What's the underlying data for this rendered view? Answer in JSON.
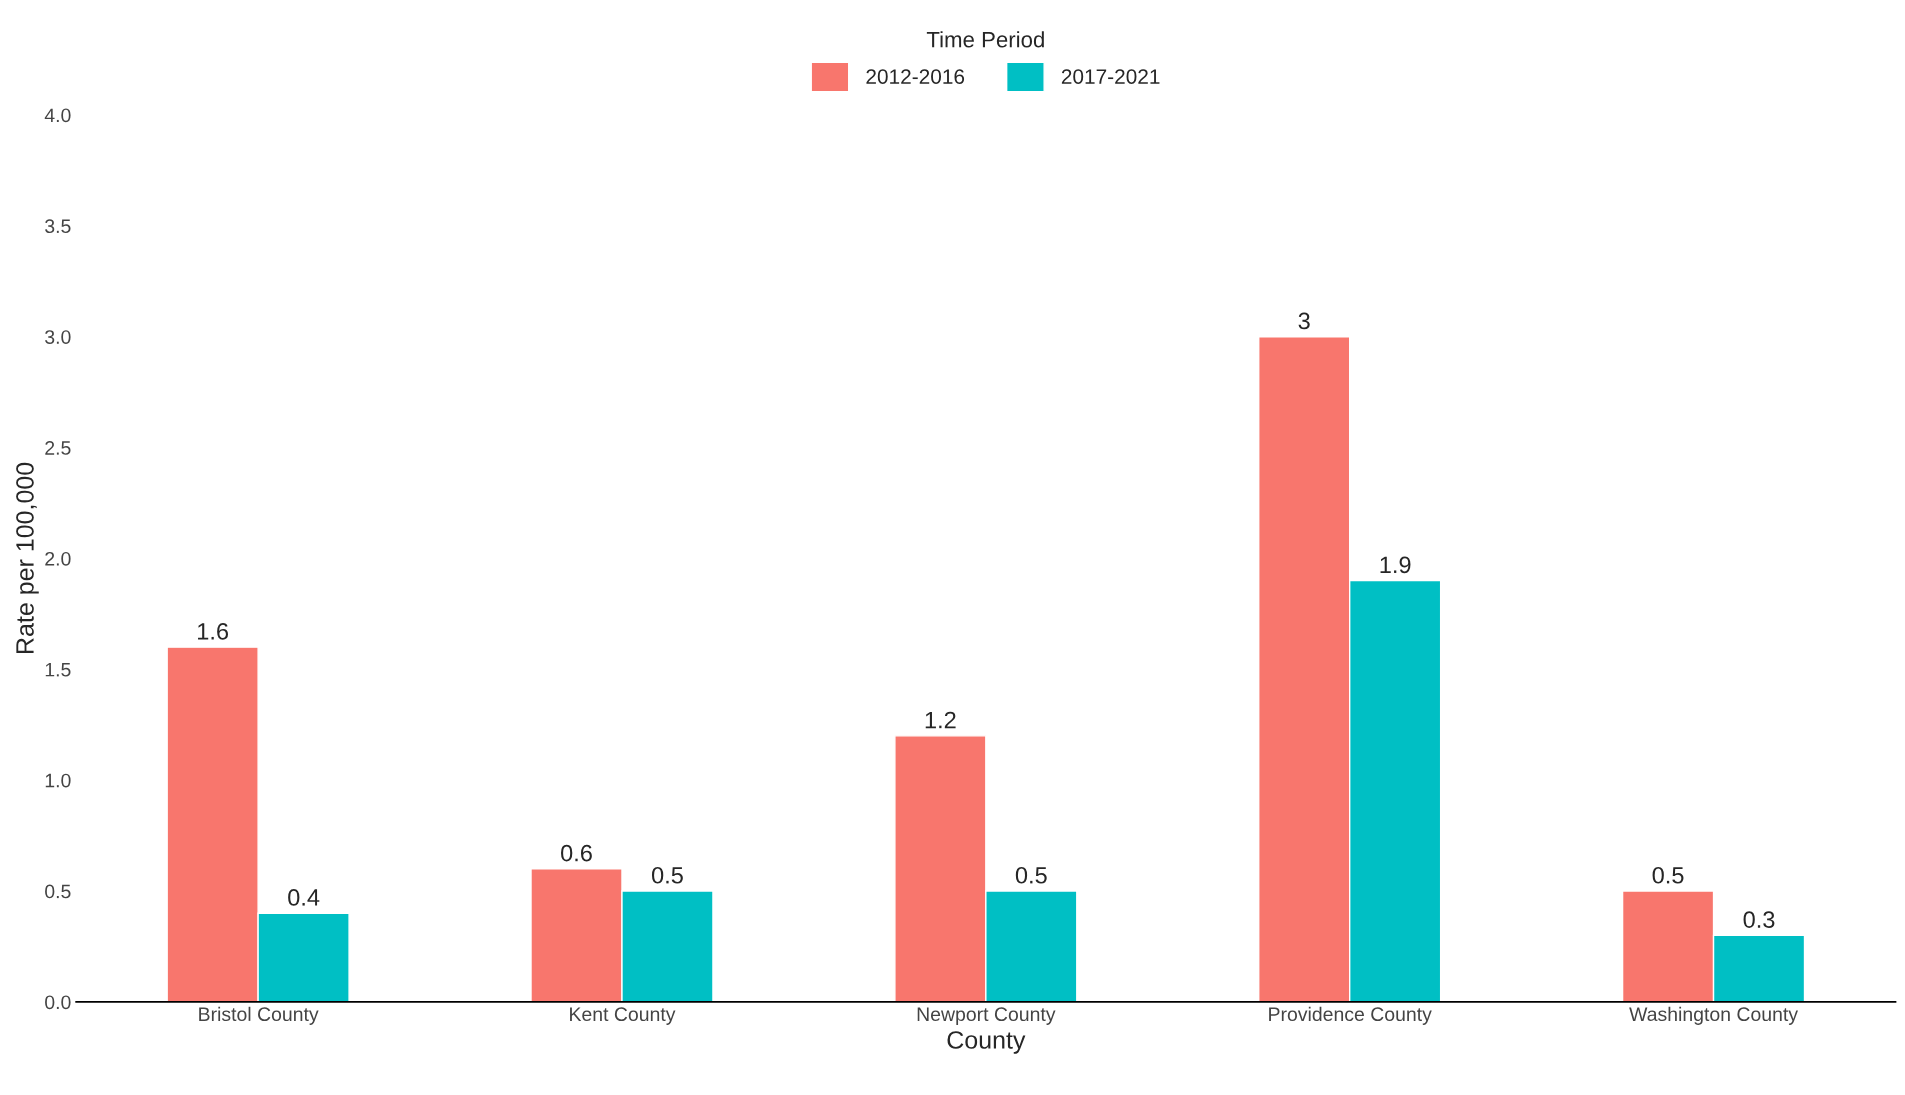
{
  "chart_data": {
    "type": "bar",
    "xlabel": "County",
    "ylabel": "Rate per 100,000",
    "legend_title": "Time Period",
    "categories": [
      "Bristol County",
      "Kent County",
      "Newport County",
      "Providence County",
      "Washington County"
    ],
    "series": [
      {
        "name": "2012-2016",
        "color": "#f8766d",
        "values": [
          1.6,
          0.6,
          1.2,
          3,
          0.5
        ]
      },
      {
        "name": "2017-2021",
        "color": "#00bfc4",
        "values": [
          0.4,
          0.5,
          0.5,
          1.9,
          0.3
        ]
      }
    ],
    "ylim": [
      0,
      4.0
    ],
    "yticks": [
      {
        "value": 0,
        "label": "0.0"
      },
      {
        "value": 0.5,
        "label": "0.5"
      },
      {
        "value": 1,
        "label": "1.0"
      },
      {
        "value": 1.5,
        "label": "1.5"
      },
      {
        "value": 2,
        "label": "2.0"
      },
      {
        "value": 2.5,
        "label": "2.5"
      },
      {
        "value": 3,
        "label": "3.0"
      },
      {
        "value": 3.5,
        "label": "3.5"
      },
      {
        "value": 4,
        "label": "4.0"
      }
    ],
    "data_labels": true,
    "grid": false,
    "legend": "top"
  }
}
